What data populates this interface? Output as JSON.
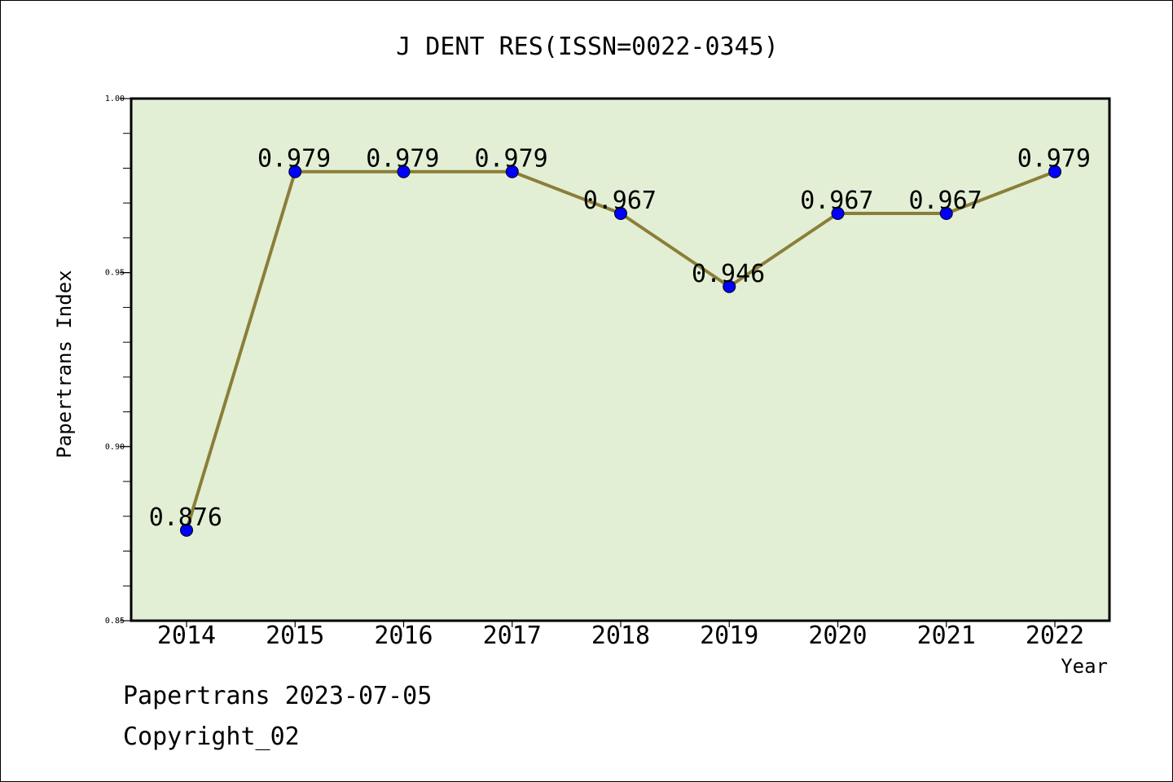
{
  "chart_data": {
    "type": "line",
    "title": "J DENT RES(ISSN=0022-0345)",
    "xlabel": "Year",
    "ylabel": "Papertrans Index",
    "categories": [
      "2014",
      "2015",
      "2016",
      "2017",
      "2018",
      "2019",
      "2020",
      "2021",
      "2022"
    ],
    "series": [
      {
        "values": [
          0.876,
          0.979,
          0.979,
          0.979,
          0.967,
          0.946,
          0.967,
          0.967,
          0.979
        ],
        "data_labels": [
          "0.876",
          "0.979",
          "0.979",
          "0.979",
          "0.967",
          "0.946",
          "0.967",
          "0.967",
          "0.979"
        ]
      }
    ],
    "ylim": [
      0.85,
      1.0
    ],
    "yticks": [
      "0.85",
      "0.90",
      "0.95",
      "1.00"
    ],
    "y_minor_step": 0.01,
    "grid": false,
    "colors": {
      "plot_background": "#e2efd5",
      "line": "#8b7e39",
      "marker": "#0000ff",
      "axis": "#000000"
    }
  },
  "footer": {
    "line1": "Papertrans 2023-07-05",
    "line2": "Copyright_02"
  }
}
